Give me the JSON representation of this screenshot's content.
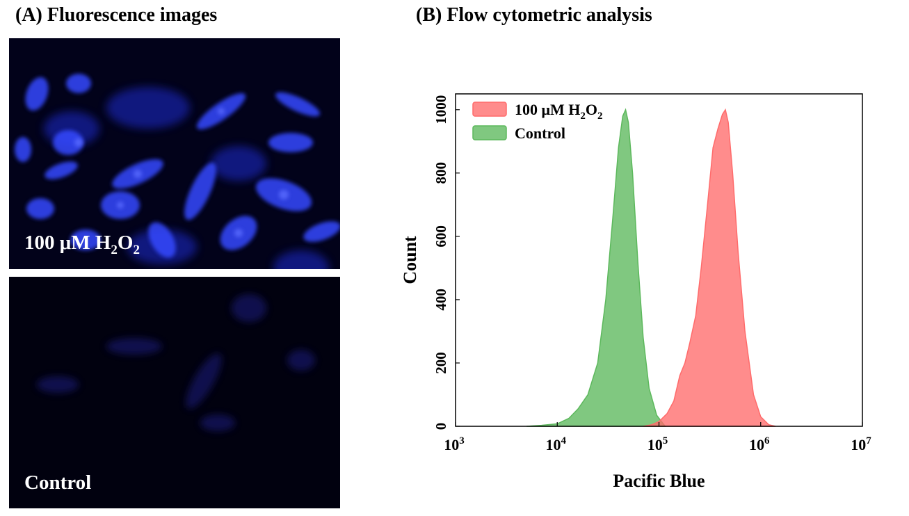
{
  "panel_a": {
    "title": "(A) Fluorescence images",
    "images": [
      {
        "label_main": "100 μM H",
        "label_sub1": "2",
        "label_mid": "O",
        "label_sub2": "2"
      },
      {
        "label_main": "Control"
      }
    ]
  },
  "panel_b": {
    "title": "(B) Flow cytometric analysis"
  },
  "chart_data": {
    "type": "area",
    "title": "(B) Flow cytometric analysis",
    "xlabel": "Pacific Blue",
    "ylabel": "Count",
    "xscale": "log",
    "xlim": [
      1000,
      10000000
    ],
    "ylim": [
      0,
      1050
    ],
    "x_tick_labels": [
      "3",
      "4",
      "5",
      "6",
      "7"
    ],
    "x_tick_values": [
      1000,
      10000,
      100000,
      1000000,
      10000000
    ],
    "y_ticks": [
      0,
      200,
      400,
      600,
      800,
      1000
    ],
    "legend_placement": "top-left",
    "series": [
      {
        "name": "Control",
        "color": "#5cb85c",
        "x": [
          5000,
          7000,
          10000,
          13000,
          16000,
          20000,
          25000,
          30000,
          35000,
          40000,
          44000,
          47000,
          50000,
          55000,
          62000,
          70000,
          80000,
          95000,
          115000
        ],
        "y": [
          0,
          3,
          8,
          25,
          55,
          100,
          200,
          400,
          650,
          880,
          980,
          1000,
          960,
          800,
          520,
          280,
          120,
          35,
          0
        ]
      },
      {
        "name": "100 μM H2O2",
        "color": "#ff6b6b",
        "x": [
          70000,
          85000,
          100000,
          120000,
          140000,
          160000,
          180000,
          200000,
          230000,
          260000,
          300000,
          340000,
          380000,
          420000,
          450000,
          480000,
          530000,
          600000,
          700000,
          850000,
          1000000,
          1200000,
          1400000
        ],
        "y": [
          0,
          5,
          15,
          40,
          80,
          160,
          200,
          260,
          350,
          500,
          700,
          880,
          940,
          985,
          1000,
          960,
          800,
          550,
          300,
          100,
          30,
          5,
          0
        ]
      }
    ]
  }
}
